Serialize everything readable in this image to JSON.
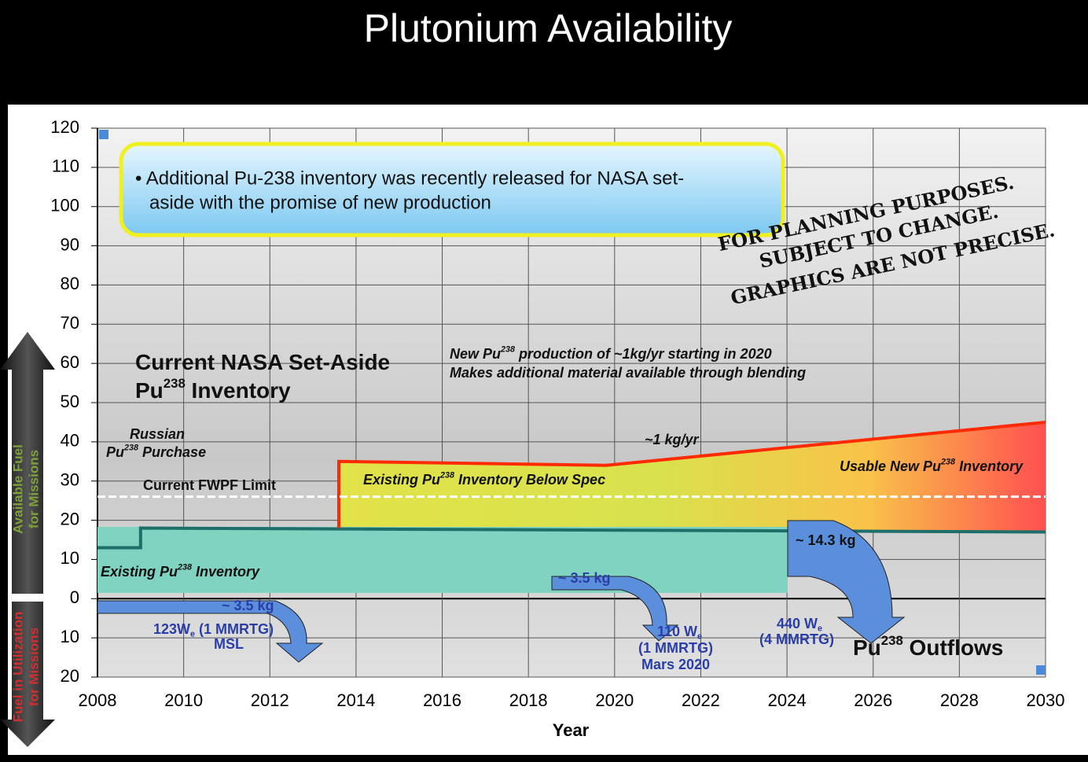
{
  "title": "Plutonium Availability",
  "chart_data": {
    "type": "line",
    "xlabel": "Year",
    "xlim": [
      2008,
      2030
    ],
    "xticks": [
      2008,
      2010,
      2012,
      2014,
      2016,
      2018,
      2020,
      2022,
      2024,
      2026,
      2028,
      2030
    ],
    "ylim": [
      -20,
      120
    ],
    "yticks": [
      {
        "value": -20,
        "label": "20"
      },
      {
        "value": -10,
        "label": "10"
      },
      0,
      10,
      20,
      30,
      40,
      50,
      60,
      70,
      80,
      90,
      100,
      110,
      120
    ],
    "grid": true,
    "series": [
      {
        "color": "#1e6e6a",
        "x": [
          2008,
          2009,
          2009,
          2030
        ],
        "values": [
          13,
          13,
          18,
          17
        ]
      },
      {
        "color": "#ff2a00",
        "x": [
          2013.6,
          2013.6,
          2019.8,
          2030
        ],
        "values": [
          18,
          35,
          34,
          45
        ]
      },
      {
        "color": "#ffffff",
        "dashed": true,
        "x": [
          2008,
          2030
        ],
        "values": [
          26,
          26
        ]
      }
    ],
    "side_labels": {
      "available": [
        "Available Fuel",
        "for Missions"
      ],
      "utilization": [
        "Fuel in Utilization",
        "for Missions"
      ]
    },
    "callout": [
      "• Additional Pu-238 inventory was recently released for NASA set-",
      "aside with the promise of new production"
    ],
    "watermark": [
      "FOR PLANNING PURPOSES.",
      "SUBJECT TO CHANGE.",
      "GRAPHICS ARE NOT PRECISE."
    ],
    "annotations": [
      [
        "Current NASA Set-Aside"
      ],
      [
        "Pu",
        "238",
        " Inventory"
      ],
      [
        "Russian"
      ],
      [
        "Pu",
        "238",
        " Purchase"
      ],
      [
        "Current FWPF Limit"
      ],
      [
        "New Pu",
        "238",
        " production of ~1kg/yr starting in 2020"
      ],
      [
        "Makes additional material available through blending"
      ],
      [
        "~1 kg/yr"
      ],
      [
        "Existing Pu",
        "238",
        " Inventory Below Spec"
      ],
      [
        "Usable New Pu",
        "238",
        " Inventory"
      ],
      [
        "Existing Pu",
        "238",
        " Inventory"
      ],
      [
        "~ 14.3 kg"
      ],
      [
        "~ 3.5 kg"
      ],
      [
        "~ 3.5 kg"
      ],
      [
        "123W",
        "e",
        " (1 MMRTG)"
      ],
      [
        "MSL"
      ],
      [
        "110 W",
        "e"
      ],
      [
        "(1 MMRTG)"
      ],
      [
        "Mars 2020"
      ],
      [
        "440 W",
        "e"
      ],
      [
        "(4 MMRTG)"
      ],
      [
        "Pu",
        "238",
        " Outflows"
      ]
    ]
  }
}
